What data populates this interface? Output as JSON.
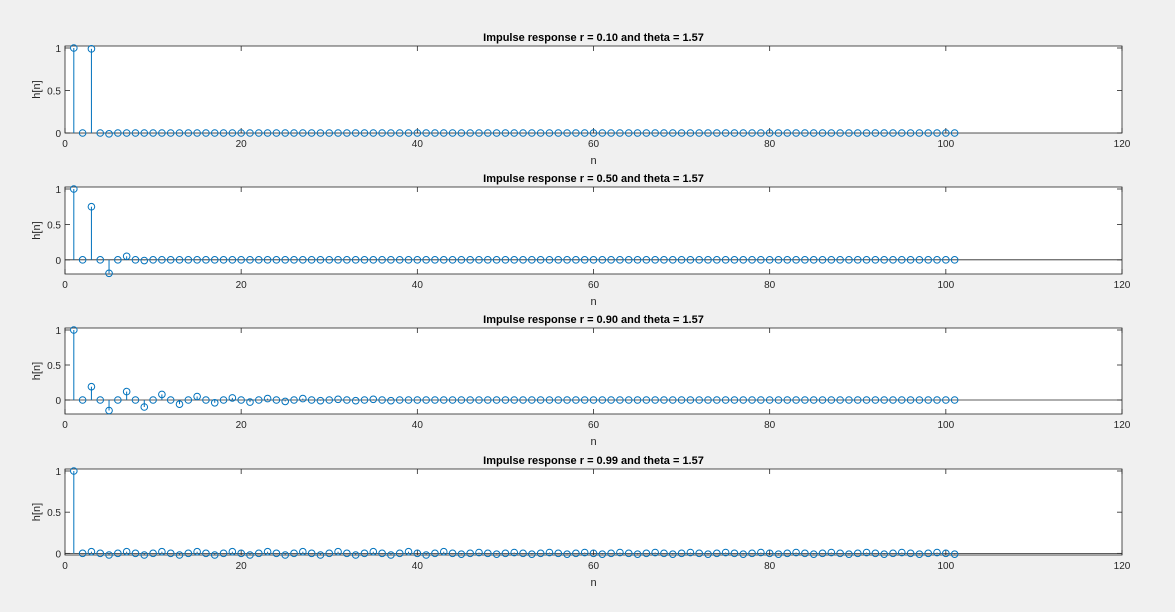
{
  "chart_data": [
    {
      "type": "stem",
      "title": "Impulse response r = 0.10 and theta = 1.57",
      "xlabel": "n",
      "ylabel": "h[n]",
      "xlim": [
        0,
        120
      ],
      "ylim": [
        0,
        1
      ],
      "xticks": [
        "0",
        "20",
        "40",
        "60",
        "80",
        "100",
        "120"
      ],
      "yticks": [
        "0",
        "0.5",
        "1"
      ],
      "ytick_values": [
        0,
        0.5,
        1
      ],
      "x": [
        1,
        2,
        3,
        4,
        5,
        6,
        7,
        8,
        9,
        10,
        11,
        12,
        13,
        14,
        15,
        16,
        17,
        18,
        19,
        20,
        21,
        22,
        23,
        24,
        25,
        26,
        27,
        28,
        29,
        30,
        31,
        32,
        33,
        34,
        35,
        36,
        37,
        38,
        39,
        40,
        41,
        42,
        43,
        44,
        45,
        46,
        47,
        48,
        49,
        50,
        51,
        52,
        53,
        54,
        55,
        56,
        57,
        58,
        59,
        60,
        61,
        62,
        63,
        64,
        65,
        66,
        67,
        68,
        69,
        70,
        71,
        72,
        73,
        74,
        75,
        76,
        77,
        78,
        79,
        80,
        81,
        82,
        83,
        84,
        85,
        86,
        87,
        88,
        89,
        90,
        91,
        92,
        93,
        94,
        95,
        96,
        97,
        98,
        99,
        100,
        101
      ],
      "values": [
        1,
        0,
        0.99,
        0,
        -0.01,
        0,
        0,
        0,
        0,
        0,
        0,
        0,
        0,
        0,
        0,
        0,
        0,
        0,
        0,
        0,
        0,
        0,
        0,
        0,
        0,
        0,
        0,
        0,
        0,
        0,
        0,
        0,
        0,
        0,
        0,
        0,
        0,
        0,
        0,
        0,
        0,
        0,
        0,
        0,
        0,
        0,
        0,
        0,
        0,
        0,
        0,
        0,
        0,
        0,
        0,
        0,
        0,
        0,
        0,
        0,
        0,
        0,
        0,
        0,
        0,
        0,
        0,
        0,
        0,
        0,
        0,
        0,
        0,
        0,
        0,
        0,
        0,
        0,
        0,
        0,
        0,
        0,
        0,
        0,
        0,
        0,
        0,
        0,
        0,
        0,
        0,
        0,
        0,
        0,
        0,
        0,
        0,
        0,
        0,
        0,
        0
      ],
      "grid": false,
      "color": "#0072bd"
    },
    {
      "type": "stem",
      "title": "Impulse response r = 0.50 and theta = 1.57",
      "xlabel": "n",
      "ylabel": "h[n]",
      "xlim": [
        0,
        120
      ],
      "ylim": [
        -0.2,
        1
      ],
      "xticks": [
        "0",
        "20",
        "40",
        "60",
        "80",
        "100",
        "120"
      ],
      "yticks": [
        "0",
        "0.5",
        "1"
      ],
      "ytick_values": [
        0,
        0.5,
        1
      ],
      "x": [
        1,
        2,
        3,
        4,
        5,
        6,
        7,
        8,
        9,
        10,
        11,
        12,
        13,
        14,
        15,
        16,
        17,
        18,
        19,
        20,
        21,
        22,
        23,
        24,
        25,
        26,
        27,
        28,
        29,
        30,
        31,
        32,
        33,
        34,
        35,
        36,
        37,
        38,
        39,
        40,
        41,
        42,
        43,
        44,
        45,
        46,
        47,
        48,
        49,
        50,
        51,
        52,
        53,
        54,
        55,
        56,
        57,
        58,
        59,
        60,
        61,
        62,
        63,
        64,
        65,
        66,
        67,
        68,
        69,
        70,
        71,
        72,
        73,
        74,
        75,
        76,
        77,
        78,
        79,
        80,
        81,
        82,
        83,
        84,
        85,
        86,
        87,
        88,
        89,
        90,
        91,
        92,
        93,
        94,
        95,
        96,
        97,
        98,
        99,
        100,
        101
      ],
      "values": [
        1,
        0,
        0.75,
        0,
        -0.19,
        0,
        0.05,
        0,
        -0.01,
        0,
        0,
        0,
        0,
        0,
        0,
        0,
        0,
        0,
        0,
        0,
        0,
        0,
        0,
        0,
        0,
        0,
        0,
        0,
        0,
        0,
        0,
        0,
        0,
        0,
        0,
        0,
        0,
        0,
        0,
        0,
        0,
        0,
        0,
        0,
        0,
        0,
        0,
        0,
        0,
        0,
        0,
        0,
        0,
        0,
        0,
        0,
        0,
        0,
        0,
        0,
        0,
        0,
        0,
        0,
        0,
        0,
        0,
        0,
        0,
        0,
        0,
        0,
        0,
        0,
        0,
        0,
        0,
        0,
        0,
        0,
        0,
        0,
        0,
        0,
        0,
        0,
        0,
        0,
        0,
        0,
        0,
        0,
        0,
        0,
        0,
        0,
        0,
        0,
        0,
        0,
        0
      ],
      "grid": false,
      "color": "#0072bd"
    },
    {
      "type": "stem",
      "title": "Impulse response r = 0.90 and theta = 1.57",
      "xlabel": "n",
      "ylabel": "h[n]",
      "xlim": [
        0,
        120
      ],
      "ylim": [
        -0.2,
        1
      ],
      "xticks": [
        "0",
        "20",
        "40",
        "60",
        "80",
        "100",
        "120"
      ],
      "yticks": [
        "0",
        "0.5",
        "1"
      ],
      "ytick_values": [
        0,
        0.5,
        1
      ],
      "x": [
        1,
        2,
        3,
        4,
        5,
        6,
        7,
        8,
        9,
        10,
        11,
        12,
        13,
        14,
        15,
        16,
        17,
        18,
        19,
        20,
        21,
        22,
        23,
        24,
        25,
        26,
        27,
        28,
        29,
        30,
        31,
        32,
        33,
        34,
        35,
        36,
        37,
        38,
        39,
        40,
        41,
        42,
        43,
        44,
        45,
        46,
        47,
        48,
        49,
        50,
        51,
        52,
        53,
        54,
        55,
        56,
        57,
        58,
        59,
        60,
        61,
        62,
        63,
        64,
        65,
        66,
        67,
        68,
        69,
        70,
        71,
        72,
        73,
        74,
        75,
        76,
        77,
        78,
        79,
        80,
        81,
        82,
        83,
        84,
        85,
        86,
        87,
        88,
        89,
        90,
        91,
        92,
        93,
        94,
        95,
        96,
        97,
        98,
        99,
        100,
        101
      ],
      "values": [
        1,
        0,
        0.19,
        0,
        -0.15,
        0,
        0.12,
        0,
        -0.1,
        0,
        0.08,
        0,
        -0.06,
        0,
        0.05,
        0,
        -0.04,
        0,
        0.03,
        0,
        -0.03,
        0,
        0.02,
        0,
        -0.02,
        0,
        0.02,
        0,
        -0.01,
        0,
        0.01,
        0,
        -0.01,
        0,
        0.01,
        0,
        -0.01,
        0,
        0,
        0,
        0,
        0,
        0,
        0,
        0,
        0,
        0,
        0,
        0,
        0,
        0,
        0,
        0,
        0,
        0,
        0,
        0,
        0,
        0,
        0,
        0,
        0,
        0,
        0,
        0,
        0,
        0,
        0,
        0,
        0,
        0,
        0,
        0,
        0,
        0,
        0,
        0,
        0,
        0,
        0,
        0,
        0,
        0,
        0,
        0,
        0,
        0,
        0,
        0,
        0,
        0,
        0,
        0,
        0,
        0,
        0,
        0,
        0,
        0,
        0,
        0
      ],
      "grid": false,
      "color": "#0072bd"
    },
    {
      "type": "stem",
      "title": "Impulse response r = 0.99 and theta = 1.57",
      "xlabel": "n",
      "ylabel": "h[n]",
      "xlim": [
        0,
        120
      ],
      "ylim": [
        -0.02,
        1
      ],
      "xticks": [
        "0",
        "20",
        "40",
        "60",
        "80",
        "100",
        "120"
      ],
      "yticks": [
        "0",
        "0.5",
        "1"
      ],
      "ytick_values": [
        0,
        0.5,
        1
      ],
      "x": [
        1,
        2,
        3,
        4,
        5,
        6,
        7,
        8,
        9,
        10,
        11,
        12,
        13,
        14,
        15,
        16,
        17,
        18,
        19,
        20,
        21,
        22,
        23,
        24,
        25,
        26,
        27,
        28,
        29,
        30,
        31,
        32,
        33,
        34,
        35,
        36,
        37,
        38,
        39,
        40,
        41,
        42,
        43,
        44,
        45,
        46,
        47,
        48,
        49,
        50,
        51,
        52,
        53,
        54,
        55,
        56,
        57,
        58,
        59,
        60,
        61,
        62,
        63,
        64,
        65,
        66,
        67,
        68,
        69,
        70,
        71,
        72,
        73,
        74,
        75,
        76,
        77,
        78,
        79,
        80,
        81,
        82,
        83,
        84,
        85,
        86,
        87,
        88,
        89,
        90,
        91,
        92,
        93,
        94,
        95,
        96,
        97,
        98,
        99,
        100,
        101
      ],
      "values": [
        1,
        0,
        0.02,
        0,
        -0.02,
        0,
        0.02,
        0,
        -0.02,
        0,
        0.02,
        0,
        -0.02,
        0,
        0.02,
        0,
        -0.02,
        0,
        0.02,
        0,
        -0.02,
        0,
        0.02,
        0,
        -0.02,
        0,
        0.02,
        0,
        -0.02,
        0,
        0.02,
        0,
        -0.02,
        0,
        0.02,
        0,
        -0.02,
        0,
        0.02,
        0,
        -0.02,
        0,
        0.02,
        0,
        -0.01,
        0,
        0.01,
        0,
        -0.01,
        0,
        0.01,
        0,
        -0.01,
        0,
        0.01,
        0,
        -0.01,
        0,
        0.01,
        0,
        -0.01,
        0,
        0.01,
        0,
        -0.01,
        0,
        0.01,
        0,
        -0.01,
        0,
        0.01,
        0,
        -0.01,
        0,
        0.01,
        0,
        -0.01,
        0,
        0.01,
        0,
        -0.01,
        0,
        0.01,
        0,
        -0.01,
        0,
        0.01,
        0,
        -0.01,
        0,
        0.01,
        0,
        -0.01,
        0,
        0.01,
        0,
        -0.01,
        0,
        0.01,
        0,
        -0.01
      ],
      "grid": false,
      "color": "#0072bd"
    }
  ]
}
